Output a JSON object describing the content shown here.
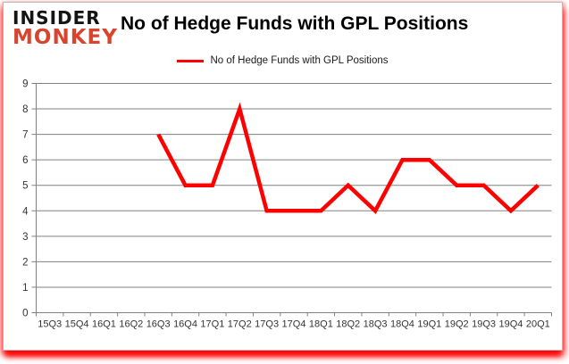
{
  "logo": {
    "line1": "INSIDER",
    "line2": "MONKEY"
  },
  "title": "No of Hedge Funds with GPL Positions",
  "legend": {
    "label": "No of Hedge Funds with GPL Positions"
  },
  "colors": {
    "line": "#FF0000",
    "grid": "#808080",
    "axis": "#808080",
    "tick_label": "#333333",
    "logo_black": "#141414",
    "logo_red": "#D8442E",
    "shadow_red": "#FF0000"
  },
  "chart_data": {
    "type": "line",
    "categories": [
      "15Q3",
      "15Q4",
      "16Q1",
      "16Q2",
      "16Q3",
      "16Q4",
      "17Q1",
      "17Q2",
      "17Q3",
      "17Q4",
      "18Q1",
      "18Q2",
      "18Q3",
      "18Q4",
      "19Q1",
      "19Q2",
      "19Q3",
      "19Q4",
      "20Q1"
    ],
    "series": [
      {
        "name": "No of Hedge Funds with GPL Positions",
        "values": [
          null,
          null,
          null,
          null,
          7,
          5,
          5,
          8,
          4,
          4,
          4,
          5,
          4,
          6,
          6,
          5,
          5,
          4,
          5
        ]
      }
    ],
    "title": "No of Hedge Funds with GPL Positions",
    "xlabel": "",
    "ylabel": "",
    "ylim": [
      0,
      9
    ],
    "ytick_step": 1,
    "grid": true,
    "legend_position": "top-center"
  }
}
